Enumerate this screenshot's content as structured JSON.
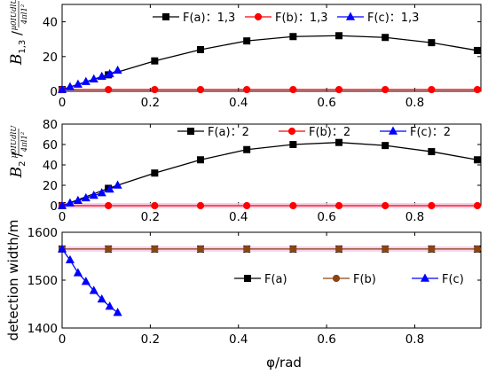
{
  "xlabel": "φ/rad",
  "chart_data": [
    {
      "type": "line",
      "ylabel_main": "B",
      "ylabel_sub": "1,3",
      "ylabel_frac_num": "μ0IUdlU",
      "ylabel_frac_den": "4πl1²",
      "xlim": [
        0,
        0.95
      ],
      "ylim": [
        0,
        50
      ],
      "xticks": [
        0,
        0.2,
        0.4,
        0.6,
        0.8
      ],
      "yticks": [
        0,
        20,
        40
      ],
      "legend_position": "top-right",
      "series": [
        {
          "name": "F(a)：1,3",
          "color": "#000000",
          "marker": "square",
          "x": [
            0.0,
            0.105,
            0.21,
            0.314,
            0.419,
            0.524,
            0.628,
            0.733,
            0.838,
            0.942
          ],
          "y": [
            1,
            9.5,
            17.5,
            24,
            29,
            31.5,
            32,
            31,
            28,
            23.5
          ]
        },
        {
          "name": "F(b)：1,3",
          "color": "#ff0000",
          "marker": "circle",
          "x": [
            0.0,
            0.105,
            0.21,
            0.314,
            0.419,
            0.524,
            0.628,
            0.733,
            0.838,
            0.942
          ],
          "y": [
            1,
            1,
            1,
            1,
            1,
            1,
            1,
            1,
            1,
            1
          ]
        },
        {
          "name": "F(c)：1,3",
          "color": "#0000ff",
          "marker": "triangle",
          "x": [
            0.0,
            0.018,
            0.036,
            0.054,
            0.072,
            0.09,
            0.108,
            0.126
          ],
          "y": [
            1,
            2.5,
            4,
            5.5,
            7,
            8.5,
            10,
            12
          ]
        }
      ]
    },
    {
      "type": "line",
      "ylabel_main": "B",
      "ylabel_sub": "2",
      "ylabel_frac_num": "μ0IUdlU",
      "ylabel_frac_den": "4πl1²",
      "xlim": [
        0,
        0.95
      ],
      "ylim": [
        0,
        80
      ],
      "xticks": [
        0,
        0.2,
        0.4,
        0.6,
        0.8
      ],
      "yticks": [
        0,
        20,
        40,
        60,
        80
      ],
      "legend_position": "top",
      "series": [
        {
          "name": "F(a)：2",
          "color": "#000000",
          "marker": "square",
          "x": [
            0.0,
            0.105,
            0.21,
            0.314,
            0.419,
            0.524,
            0.628,
            0.733,
            0.838,
            0.942
          ],
          "y": [
            0,
            17,
            32,
            45,
            55,
            60,
            62,
            59,
            53,
            45
          ]
        },
        {
          "name": "F(b)：2",
          "color": "#ff0000",
          "marker": "circle",
          "x": [
            0.0,
            0.105,
            0.21,
            0.314,
            0.419,
            0.524,
            0.628,
            0.733,
            0.838,
            0.942
          ],
          "y": [
            0,
            0,
            0,
            0,
            0,
            0,
            0,
            0,
            0,
            0
          ]
        },
        {
          "name": "F(c)：2",
          "color": "#0000ff",
          "marker": "triangle",
          "x": [
            0.0,
            0.018,
            0.036,
            0.054,
            0.072,
            0.09,
            0.108,
            0.126
          ],
          "y": [
            0,
            2.5,
            5,
            7.5,
            10,
            12.5,
            16,
            20
          ]
        }
      ]
    },
    {
      "type": "line",
      "ylabel": "detection width/m",
      "xlim": [
        0,
        0.95
      ],
      "ylim": [
        1400,
        1600
      ],
      "xticks": [
        0,
        0.2,
        0.4,
        0.6,
        0.8
      ],
      "yticks": [
        1400,
        1500,
        1600
      ],
      "legend_position": "center-right",
      "series": [
        {
          "name": "F(a)",
          "color": "#000000",
          "marker": "square",
          "x": [
            0.0,
            0.105,
            0.21,
            0.314,
            0.419,
            0.524,
            0.628,
            0.733,
            0.838,
            0.942
          ],
          "y": [
            1565,
            1565,
            1565,
            1565,
            1565,
            1565,
            1565,
            1565,
            1565,
            1565
          ]
        },
        {
          "name": "F(b)",
          "color": "#8b4513",
          "marker": "circle",
          "x": [
            0.0,
            0.105,
            0.21,
            0.314,
            0.419,
            0.524,
            0.628,
            0.733,
            0.838,
            0.942
          ],
          "y": [
            1565,
            1565,
            1565,
            1565,
            1565,
            1565,
            1565,
            1565,
            1565,
            1565
          ]
        },
        {
          "name": "F(c)",
          "color": "#0000ff",
          "marker": "triangle",
          "x": [
            0.0,
            0.018,
            0.036,
            0.054,
            0.072,
            0.09,
            0.108,
            0.126
          ],
          "y": [
            1565,
            1542,
            1515,
            1497,
            1478,
            1460,
            1445,
            1432
          ]
        }
      ]
    }
  ]
}
